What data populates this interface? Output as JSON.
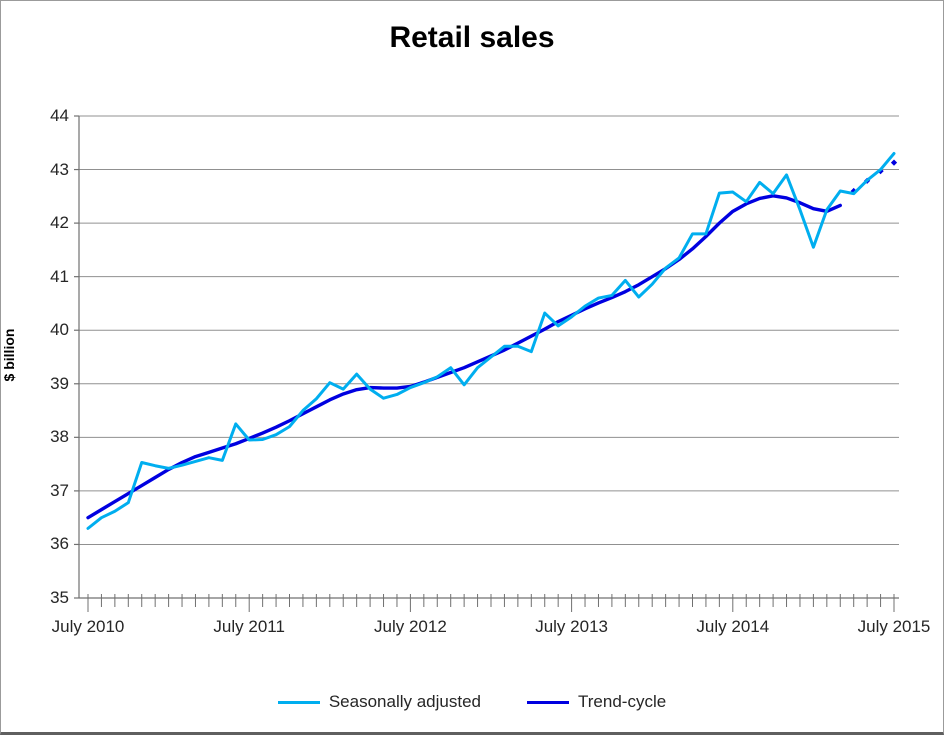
{
  "title": "Retail sales",
  "y_axis": {
    "label": "$ billion",
    "ticks": [
      44,
      43,
      42,
      41,
      40,
      39,
      38,
      37,
      36,
      35
    ]
  },
  "x_axis": {
    "labels": [
      "July 2010",
      "July 2011",
      "July 2012",
      "July 2013",
      "July 2014",
      "July 2015"
    ],
    "months_between_labels": 12
  },
  "legend": {
    "items": [
      {
        "label": "Seasonally adjusted"
      },
      {
        "label": "Trend-cycle"
      }
    ]
  },
  "colors": {
    "seasonally_adjusted": "#00AEEF",
    "trend_cycle": "#0000E0",
    "gridline": "#909090",
    "axis": "#707070",
    "text": "#262626"
  },
  "chart_data": {
    "type": "line",
    "title": "Retail sales",
    "ylabel": "$ billion",
    "ylim": [
      35,
      44
    ],
    "grid": "horizontal",
    "legend_position": "bottom",
    "x_start": "July 2010",
    "x_end": "July 2015",
    "frequency": "monthly",
    "series": [
      {
        "name": "Seasonally adjusted",
        "color": "#00AEEF",
        "style": "solid",
        "values": [
          36.3,
          36.5,
          36.62,
          36.78,
          37.53,
          37.47,
          37.42,
          37.48,
          37.55,
          37.62,
          37.57,
          38.25,
          37.95,
          37.96,
          38.05,
          38.2,
          38.5,
          38.72,
          39.02,
          38.9,
          39.18,
          38.9,
          38.73,
          38.8,
          38.93,
          39.02,
          39.13,
          39.3,
          38.98,
          39.3,
          39.5,
          39.7,
          39.7,
          39.6,
          40.32,
          40.08,
          40.25,
          40.45,
          40.6,
          40.65,
          40.93,
          40.62,
          40.86,
          41.16,
          41.35,
          41.8,
          41.8,
          42.56,
          42.58,
          42.4,
          42.76,
          42.55,
          42.9,
          42.25,
          41.55,
          42.25,
          42.6,
          42.55,
          42.8,
          43.0,
          43.3
        ]
      },
      {
        "name": "Trend-cycle",
        "color": "#0000E0",
        "style": "solid",
        "dotted_from_index": 57,
        "values": [
          36.5,
          36.65,
          36.8,
          36.95,
          37.1,
          37.25,
          37.4,
          37.53,
          37.64,
          37.72,
          37.8,
          37.88,
          37.98,
          38.08,
          38.19,
          38.31,
          38.44,
          38.57,
          38.7,
          38.81,
          38.89,
          38.93,
          38.92,
          38.92,
          38.95,
          39.03,
          39.12,
          39.21,
          39.3,
          39.41,
          39.52,
          39.63,
          39.76,
          39.89,
          40.02,
          40.16,
          40.28,
          40.4,
          40.51,
          40.61,
          40.72,
          40.85,
          41.0,
          41.15,
          41.32,
          41.52,
          41.75,
          42.0,
          42.22,
          42.36,
          42.46,
          42.51,
          42.47,
          42.38,
          42.27,
          42.22,
          42.33,
          42.6,
          42.79,
          42.97,
          43.13
        ]
      }
    ]
  }
}
